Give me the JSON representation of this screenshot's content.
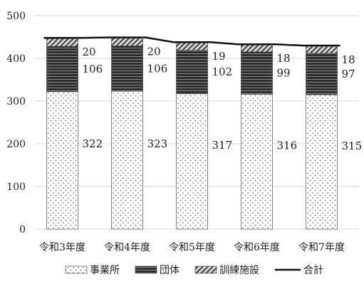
{
  "chart_data": {
    "type": "bar",
    "stacked": true,
    "categories": [
      "令和3年度",
      "令和4年度",
      "令和5年度",
      "令和6年度",
      "令和7年度"
    ],
    "series": [
      {
        "name": "事業所",
        "values": [
          322,
          323,
          317,
          316,
          315
        ],
        "pattern": "dots"
      },
      {
        "name": "団体",
        "values": [
          106,
          106,
          102,
          99,
          97
        ],
        "pattern": "stripes"
      },
      {
        "name": "訓練施設",
        "values": [
          20,
          20,
          19,
          18,
          18
        ],
        "pattern": "hatch"
      }
    ],
    "line": {
      "name": "合計",
      "values": [
        448,
        449,
        438,
        433,
        430
      ]
    },
    "ylim": [
      0,
      500
    ],
    "yticks": [
      0,
      100,
      200,
      300,
      400,
      500
    ],
    "grid": true,
    "legend": "bottom",
    "colors": {
      "grid": "#d8d8d8",
      "bar_dark": "#333333",
      "line": "#111111"
    }
  }
}
